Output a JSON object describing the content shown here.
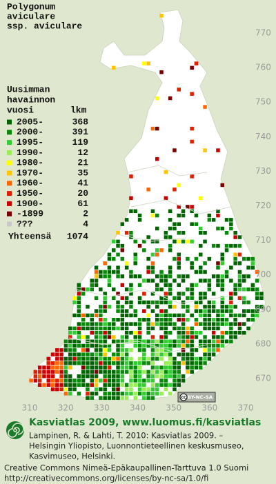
{
  "title": [
    "Polygonum",
    "aviculare",
    "ssp. aviculare"
  ],
  "legend": {
    "heading": [
      "Uusimman",
      "havainnon",
      "vuosi"
    ],
    "count_heading": "lkm",
    "rows": [
      {
        "label": "2005-",
        "count": 368,
        "color": "#006400"
      },
      {
        "label": "2000-",
        "count": 391,
        "color": "#0a8a0a"
      },
      {
        "label": "1995-",
        "count": 119,
        "color": "#33cc33"
      },
      {
        "label": "1990-",
        "count": 12,
        "color": "#99ee55"
      },
      {
        "label": "1980-",
        "count": 21,
        "color": "#ffff00"
      },
      {
        "label": "1970-",
        "count": 35,
        "color": "#ffc400"
      },
      {
        "label": "1960-",
        "count": 41,
        "color": "#ff6600"
      },
      {
        "label": "1950-",
        "count": 20,
        "color": "#e02000"
      },
      {
        "label": "1900-",
        "count": 61,
        "color": "#c80000"
      },
      {
        "label": "-1899",
        "count": 2,
        "color": "#7a0000"
      },
      {
        "label": "???",
        "count": 4,
        "color": "#c8c8c8"
      }
    ],
    "total_label": "Yhteensä",
    "total": 1074
  },
  "y_axis": [
    770,
    760,
    750,
    740,
    730,
    720,
    710,
    700,
    690,
    680,
    670
  ],
  "x_axis": [
    310,
    320,
    330,
    340,
    350,
    360,
    370
  ],
  "cc_badge": {
    "cc": "cc",
    "text": "BY-NC-SA"
  },
  "footer": {
    "site": "Kasviatlas 2009, www.luomus.fi/kasviatlas",
    "citation": [
      "Lampinen, R. & Lahti, T. 2010: Kasviatlas 2009. –",
      "Helsingin Yliopisto, Luonnontieteellinen keskusmuseo,",
      "Kasvimuseo, Helsinki."
    ],
    "license": [
      "Creative Commons Nimeä-Epäkaupallinen-Tarttuva 1.0 Suomi",
      "http://creativecommons.org/licenses/by-nc-sa/1.0/fi"
    ]
  }
}
